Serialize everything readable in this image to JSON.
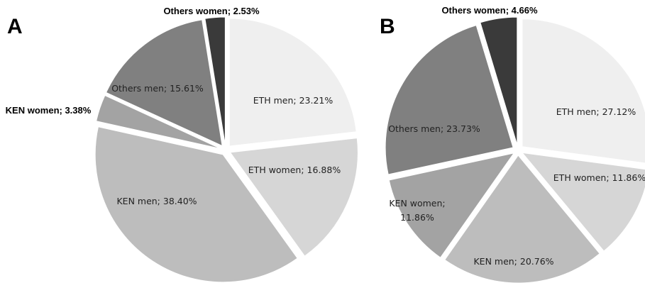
{
  "chart_data": [
    {
      "type": "pie",
      "panel": "A",
      "start_angle_deg": 0,
      "direction": "clockwise",
      "exploded": true,
      "slices": [
        {
          "label": "ETH men",
          "value": 23.21,
          "text": "ETH men; 23.21%",
          "color": "#efefef"
        },
        {
          "label": "ETH women",
          "value": 16.88,
          "text": "ETH women; 16.88%",
          "color": "#d6d6d6"
        },
        {
          "label": "KEN men",
          "value": 38.4,
          "text": "KEN men; 38.40%",
          "color": "#bdbdbd"
        },
        {
          "label": "KEN women",
          "value": 3.38,
          "text": "KEN women; 3.38%",
          "color": "#a3a3a3"
        },
        {
          "label": "Others men",
          "value": 15.61,
          "text": "Others men; 15.61%",
          "color": "#808080"
        },
        {
          "label": "Others women",
          "value": 2.53,
          "text": "Others women; 2.53%",
          "color": "#3a3a3a"
        }
      ]
    },
    {
      "type": "pie",
      "panel": "B",
      "start_angle_deg": 0,
      "direction": "clockwise",
      "exploded": true,
      "slices": [
        {
          "label": "ETH men",
          "value": 27.12,
          "text": "ETH men; 27.12%",
          "color": "#efefef"
        },
        {
          "label": "ETH women",
          "value": 11.86,
          "text": "ETH women; 11.86%",
          "color": "#d6d6d6"
        },
        {
          "label": "KEN men",
          "value": 20.76,
          "text": "KEN men; 20.76%",
          "color": "#bdbdbd"
        },
        {
          "label": "KEN women",
          "value": 11.86,
          "text": "KEN women;\n11.86%",
          "color": "#a3a3a3"
        },
        {
          "label": "Others men",
          "value": 23.73,
          "text": "Others men; 23.73%",
          "color": "#808080"
        },
        {
          "label": "Others women",
          "value": 4.66,
          "text": "Others women; 4.66%",
          "color": "#3a3a3a"
        }
      ]
    }
  ]
}
